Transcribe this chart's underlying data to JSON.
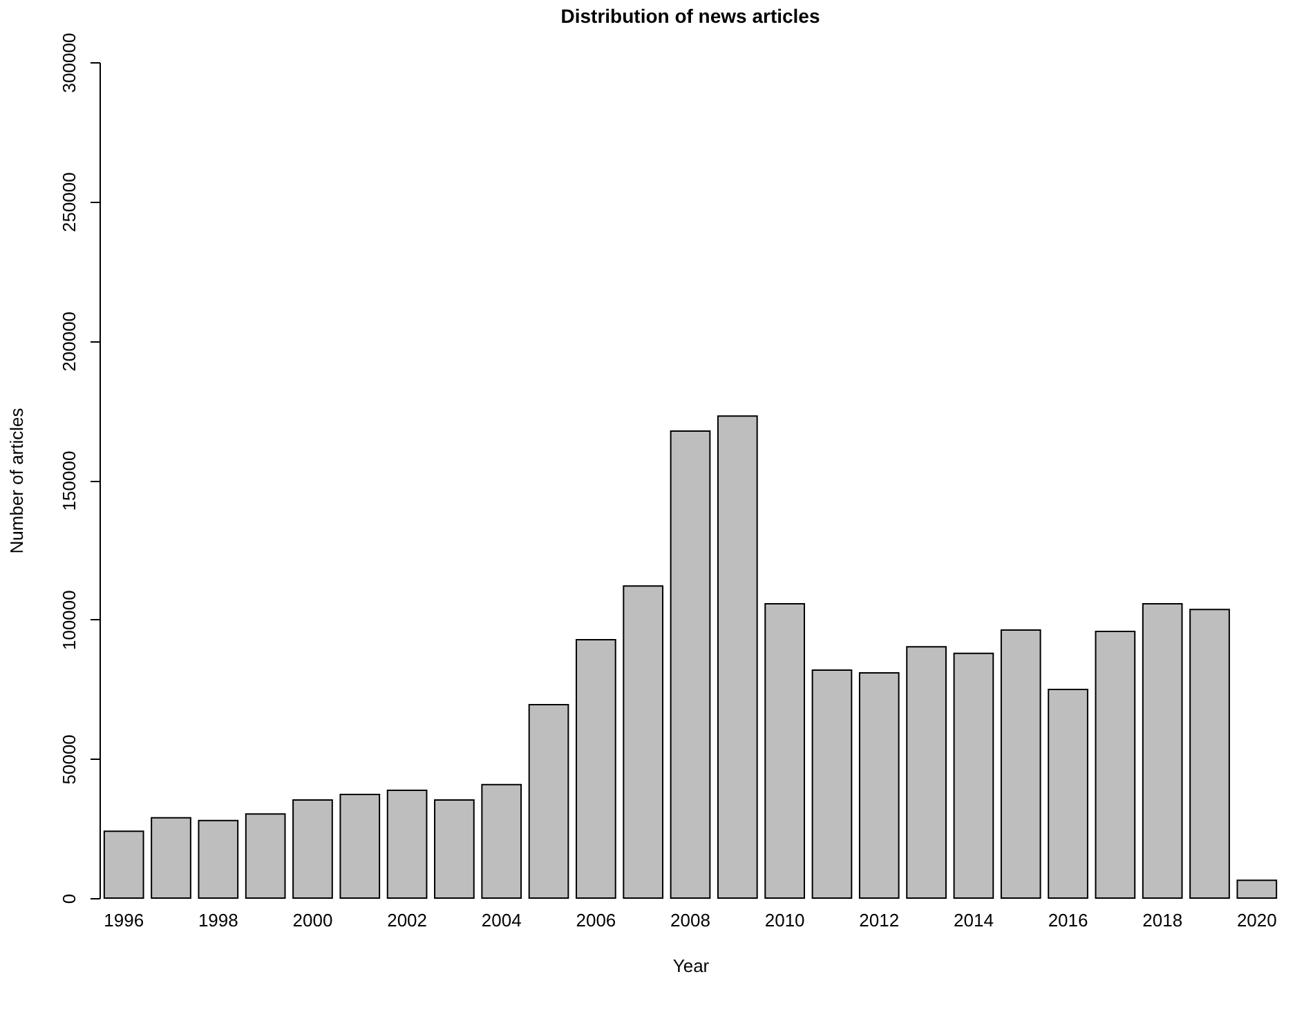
{
  "chart_data": {
    "type": "bar",
    "title": "Distribution of news articles",
    "xlabel": "Year",
    "ylabel": "Number of articles",
    "categories": [
      "1996",
      null,
      "1998",
      null,
      "2000",
      null,
      "2002",
      null,
      "2004",
      null,
      "2006",
      null,
      "2008",
      null,
      "2010",
      null,
      "2012",
      null,
      "2014",
      null,
      "2016",
      null,
      "2018",
      null,
      "2020"
    ],
    "values": [
      24000,
      28800,
      27800,
      30200,
      35200,
      37200,
      38700,
      35200,
      40700,
      69400,
      92700,
      112000,
      167600,
      173000,
      105600,
      81800,
      80800,
      90200,
      87800,
      96200,
      74900,
      95700,
      105600,
      103600,
      6400
    ],
    "color": "#bebebe",
    "ylim": [
      0,
      300000
    ],
    "yticks": [
      0,
      50000,
      100000,
      150000,
      200000,
      250000,
      300000
    ],
    "grid": false
  }
}
